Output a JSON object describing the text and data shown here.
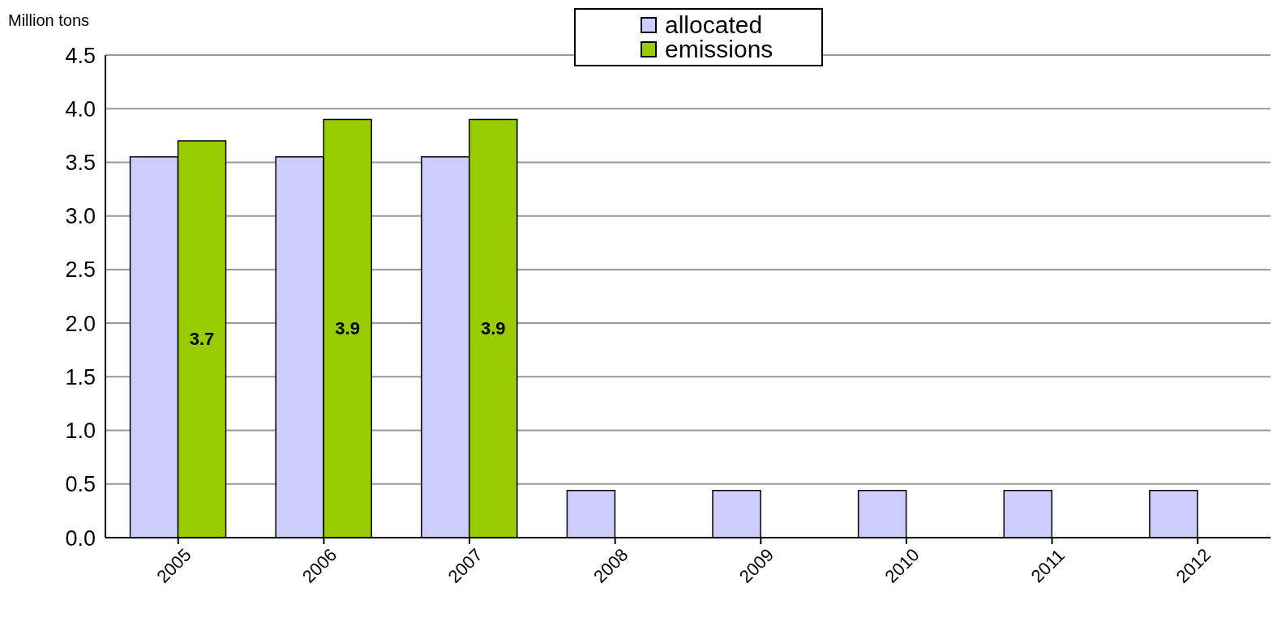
{
  "chart_data": {
    "type": "bar",
    "ylabel": "Million tons",
    "categories": [
      "2005",
      "2006",
      "2007",
      "2008",
      "2009",
      "2010",
      "2011",
      "2012"
    ],
    "series": [
      {
        "name": "allocated",
        "color": "#ccccff",
        "values": [
          3.55,
          3.55,
          3.55,
          0.44,
          0.44,
          0.44,
          0.44,
          0.44
        ]
      },
      {
        "name": "emissions",
        "color": "#99cc00",
        "values": [
          3.7,
          3.9,
          3.9,
          null,
          null,
          null,
          null,
          null
        ],
        "value_labels": [
          "3.7",
          "3.9",
          "3.9",
          null,
          null,
          null,
          null,
          null
        ]
      }
    ],
    "ylim": [
      0,
      4.5
    ],
    "yticks": [
      {
        "value": 0,
        "label": "0.0"
      },
      {
        "value": 0.5,
        "label": "0.5"
      },
      {
        "value": 1,
        "label": "1.0"
      },
      {
        "value": 1.5,
        "label": "1.5"
      },
      {
        "value": 2,
        "label": "2.0"
      },
      {
        "value": 2.5,
        "label": "2.5"
      },
      {
        "value": 3,
        "label": "3.0"
      },
      {
        "value": 3.5,
        "label": "3.5"
      },
      {
        "value": 4,
        "label": "4.0"
      },
      {
        "value": 4.5,
        "label": "4.5"
      }
    ],
    "grid": "y",
    "legend": "top"
  }
}
